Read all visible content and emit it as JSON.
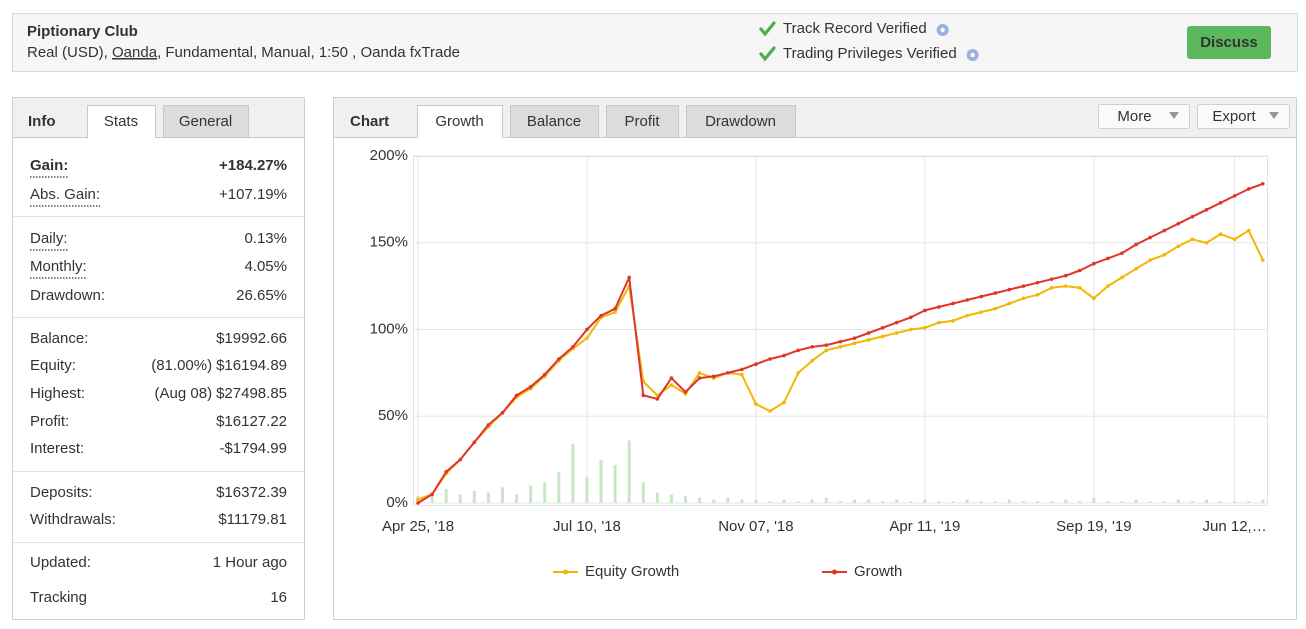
{
  "header": {
    "title": "Piptionary Club",
    "account": [
      "Real (USD), ",
      "Oanda",
      ", Fundamental, Manual, 1:50 , Oanda fxTrade"
    ],
    "verifications": [
      "Track Record Verified",
      "Trading Privileges Verified"
    ],
    "button": "Discuss"
  },
  "info": {
    "tabs": [
      "Info",
      "Stats",
      "General"
    ],
    "groups": [
      [
        {
          "label": "Gain:",
          "value": "+184.27%"
        },
        {
          "label": "Abs. Gain:",
          "value": "+107.19%"
        }
      ],
      [
        {
          "label": "Daily:",
          "value": "0.13%"
        },
        {
          "label": "Monthly:",
          "value": "4.05%"
        },
        {
          "label": "Drawdown:",
          "value": "26.65%"
        }
      ],
      [
        {
          "label": "Balance:",
          "value": "$19992.66"
        },
        {
          "label": "Equity:",
          "note": "(81.00%)",
          "value": "$16194.89"
        },
        {
          "label": "Highest:",
          "note": "(Aug 08)",
          "value": "$27498.85"
        },
        {
          "label": "Profit:",
          "value": "$16127.22"
        },
        {
          "label": "Interest:",
          "value": "-$1794.99"
        }
      ],
      [
        {
          "label": "Deposits:",
          "value": "$16372.39"
        },
        {
          "label": "Withdrawals:",
          "value": "$11179.81"
        }
      ],
      [
        {
          "label": "Updated:",
          "value": "1 Hour ago"
        },
        {
          "label": "Tracking",
          "value": "16"
        }
      ]
    ]
  },
  "chart_panel": {
    "tabs": [
      "Chart",
      "Growth",
      "Balance",
      "Profit",
      "Drawdown"
    ],
    "buttons": [
      "More",
      "Export"
    ]
  },
  "chart_data": {
    "type": "line",
    "categories": [
      "Apr 25, '18",
      null,
      null,
      null,
      null,
      null,
      null,
      null,
      null,
      null,
      null,
      null,
      "Jul 10, '18",
      null,
      null,
      null,
      null,
      null,
      null,
      null,
      null,
      null,
      null,
      null,
      "Nov 07, '18",
      null,
      null,
      null,
      null,
      null,
      null,
      null,
      null,
      null,
      null,
      null,
      "Apr 11, '19",
      null,
      null,
      null,
      null,
      null,
      null,
      null,
      null,
      null,
      null,
      null,
      "Sep 19, '19",
      null,
      null,
      null,
      null,
      null,
      null,
      null,
      null,
      null,
      "Jun 12,…",
      null,
      null
    ],
    "series": [
      {
        "type": "bar",
        "color": "#c8e6c4",
        "values": [
          4,
          6,
          8,
          5,
          7,
          6,
          9,
          5,
          10,
          12,
          18,
          34,
          15,
          25,
          22,
          36,
          12,
          6,
          5,
          4,
          3,
          2,
          3,
          2,
          2,
          1,
          2,
          1,
          2,
          3,
          1,
          2,
          2,
          1,
          2,
          1,
          2,
          1,
          1,
          2,
          1,
          1,
          2,
          1,
          1,
          1,
          2,
          1,
          3,
          1,
          1,
          2,
          1,
          1,
          2,
          1,
          2,
          1,
          1,
          1,
          2
        ]
      },
      {
        "name": "Equity Growth",
        "color": "#f2b705",
        "values": [
          2,
          5,
          17,
          25,
          35,
          44,
          52,
          61,
          66,
          73,
          82,
          89,
          95,
          107,
          110,
          125,
          70,
          62,
          68,
          63,
          75,
          72,
          75,
          74,
          57,
          53,
          58,
          75,
          82,
          88,
          90,
          92,
          94,
          96,
          98,
          100,
          101,
          104,
          105,
          108,
          110,
          112,
          115,
          118,
          120,
          124,
          125,
          124,
          118,
          125,
          130,
          135,
          140,
          143,
          148,
          152,
          150,
          155,
          152,
          157,
          140
        ]
      },
      {
        "name": "Growth",
        "color": "#e0352b",
        "values": [
          0,
          5,
          18,
          25,
          35,
          45,
          52,
          62,
          67,
          74,
          83,
          90,
          100,
          108,
          112,
          130,
          62,
          60,
          72,
          64,
          72,
          73,
          75,
          77,
          80,
          83,
          85,
          88,
          90,
          91,
          93,
          95,
          98,
          101,
          104,
          107,
          111,
          113,
          115,
          117,
          119,
          121,
          123,
          125,
          127,
          129,
          131,
          134,
          138,
          141,
          144,
          149,
          153,
          157,
          161,
          165,
          169,
          173,
          177,
          181,
          184
        ]
      }
    ],
    "ylim": [
      0,
      200
    ],
    "yticks": [
      {
        "value": 0,
        "label": "0%"
      },
      {
        "value": 50,
        "label": "50%"
      },
      {
        "value": 100,
        "label": "100%"
      },
      {
        "value": 150,
        "label": "150%"
      },
      {
        "value": 200,
        "label": "200%"
      }
    ],
    "grid": true
  }
}
